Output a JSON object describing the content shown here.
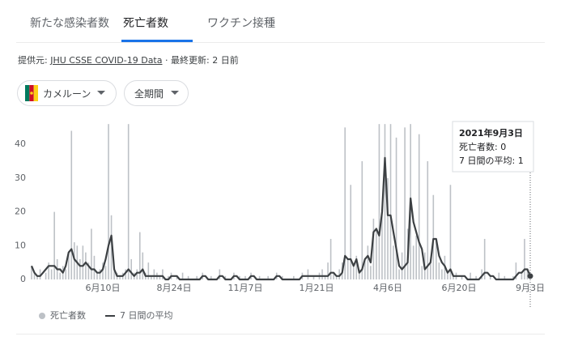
{
  "tabs": [
    "新たな感染者数",
    "死亡者数",
    "ワクチン接種"
  ],
  "source": {
    "prefix": "提供元:",
    "link": "JHU CSSE COVID-19 Data",
    "suffix": "· 最終更新: 2 日前"
  },
  "filters": [
    "カメルーン",
    "全期間"
  ],
  "tooltip": {
    "date": "2021年9月3日",
    "deaths": "死亡者数: 0",
    "average": "7 日間の平均: 1"
  },
  "chart_data": {
    "type": "bar-line",
    "categories": [
      null,
      null,
      null,
      null,
      null,
      null,
      null,
      null,
      null,
      null,
      null,
      null,
      null,
      null,
      null,
      null,
      null,
      null,
      null,
      null,
      null,
      null,
      null,
      null,
      null,
      "6月10日",
      null,
      null,
      null,
      null,
      null,
      null,
      null,
      null,
      null,
      null,
      null,
      null,
      null,
      null,
      null,
      null,
      null,
      null,
      null,
      null,
      null,
      null,
      null,
      null,
      "8月24日",
      null,
      null,
      null,
      null,
      null,
      null,
      null,
      null,
      null,
      null,
      null,
      null,
      null,
      null,
      null,
      null,
      null,
      null,
      null,
      null,
      null,
      null,
      null,
      null,
      "11月7日",
      null,
      null,
      null,
      null,
      null,
      null,
      null,
      null,
      null,
      null,
      null,
      null,
      null,
      null,
      null,
      null,
      null,
      null,
      null,
      null,
      null,
      null,
      null,
      null,
      "1月21日",
      null,
      null,
      null,
      null,
      null,
      null,
      null,
      null,
      null,
      null,
      null,
      null,
      null,
      null,
      null,
      null,
      null,
      null,
      null,
      null,
      null,
      null,
      null,
      null,
      "4月6日",
      null,
      null,
      null,
      null,
      null,
      null,
      null,
      null,
      null,
      null,
      null,
      null,
      null,
      null,
      null,
      null,
      null,
      null,
      null,
      null,
      null,
      null,
      null,
      null,
      "6月20日",
      null,
      null,
      null,
      null,
      null,
      null,
      null,
      null,
      null,
      null,
      null,
      null,
      null,
      null,
      null,
      null,
      null,
      null,
      null,
      null,
      null,
      null,
      null,
      null,
      "9月3日"
    ],
    "series": [
      {
        "name": "死亡者数",
        "color": "#bdc1c6",
        "values": [
          4,
          2,
          1,
          3,
          0,
          2,
          5,
          3,
          20,
          6,
          2,
          4,
          3,
          8,
          44,
          11,
          10,
          6,
          10,
          8,
          5,
          15,
          7,
          2,
          3,
          5,
          4,
          46,
          19,
          3,
          2,
          1,
          2,
          3,
          46,
          6,
          2,
          3,
          14,
          8,
          2,
          5,
          1,
          3,
          2,
          1,
          3,
          0,
          1,
          2,
          0,
          1,
          0,
          2,
          0,
          1,
          0,
          0,
          1,
          0,
          2,
          0,
          0,
          1,
          0,
          0,
          3,
          0,
          1,
          0,
          0,
          2,
          0,
          1,
          0,
          1,
          0,
          2,
          0,
          0,
          1,
          0,
          0,
          1,
          0,
          0,
          2,
          0,
          1,
          0,
          0,
          0,
          1,
          0,
          0,
          2,
          0,
          3,
          0,
          1,
          0,
          2,
          3,
          1,
          5,
          12,
          2,
          1,
          3,
          5,
          45,
          6,
          28,
          4,
          7,
          3,
          35,
          6,
          10,
          4,
          18,
          15,
          46,
          20,
          46,
          30,
          46,
          10,
          42,
          3,
          8,
          45,
          15,
          46,
          10,
          13,
          43,
          4,
          8,
          35,
          6,
          25,
          12,
          5,
          3,
          7,
          2,
          28,
          1,
          2,
          0,
          1,
          0,
          0,
          2,
          0,
          1,
          0,
          3,
          12,
          0,
          1,
          0,
          0,
          2,
          0,
          1,
          0,
          0,
          1,
          5,
          0,
          2,
          12,
          3,
          0
        ]
      },
      {
        "name": "7 日間の平均",
        "color": "#3c4043",
        "values": [
          4,
          2,
          1,
          1,
          2,
          3,
          4,
          4,
          4,
          3,
          3,
          2,
          4,
          8,
          9,
          6,
          5,
          4,
          4,
          5,
          4,
          3,
          3,
          2,
          2,
          3,
          6,
          10,
          13,
          3,
          1,
          1,
          1,
          2,
          3,
          2,
          1,
          2,
          2,
          3,
          1,
          1,
          1,
          1,
          1,
          1,
          1,
          0,
          0,
          1,
          1,
          1,
          0,
          0,
          0,
          0,
          0,
          0,
          0,
          0,
          1,
          1,
          0,
          0,
          0,
          0,
          1,
          1,
          0,
          0,
          0,
          1,
          1,
          0,
          0,
          0,
          0,
          1,
          1,
          0,
          0,
          0,
          0,
          0,
          0,
          0,
          1,
          1,
          0,
          0,
          0,
          0,
          0,
          0,
          0,
          1,
          1,
          1,
          1,
          1,
          1,
          1,
          1,
          1,
          1,
          2,
          2,
          1,
          1,
          2,
          7,
          6,
          6,
          4,
          6,
          2,
          3,
          6,
          7,
          5,
          14,
          15,
          13,
          20,
          36,
          19,
          19,
          14,
          9,
          4,
          3,
          4,
          5,
          24,
          17,
          14,
          11,
          9,
          3,
          4,
          5,
          12,
          12,
          7,
          5,
          4,
          2,
          3,
          1,
          1,
          1,
          1,
          1,
          0,
          0,
          0,
          0,
          0,
          1,
          2,
          2,
          1,
          1,
          0,
          0,
          0,
          0,
          0,
          0,
          0,
          1,
          2,
          2,
          3,
          3,
          1
        ]
      }
    ],
    "ylim": [
      0,
      47
    ],
    "yticks": [
      0,
      10,
      20,
      30,
      40
    ],
    "grid": false
  }
}
